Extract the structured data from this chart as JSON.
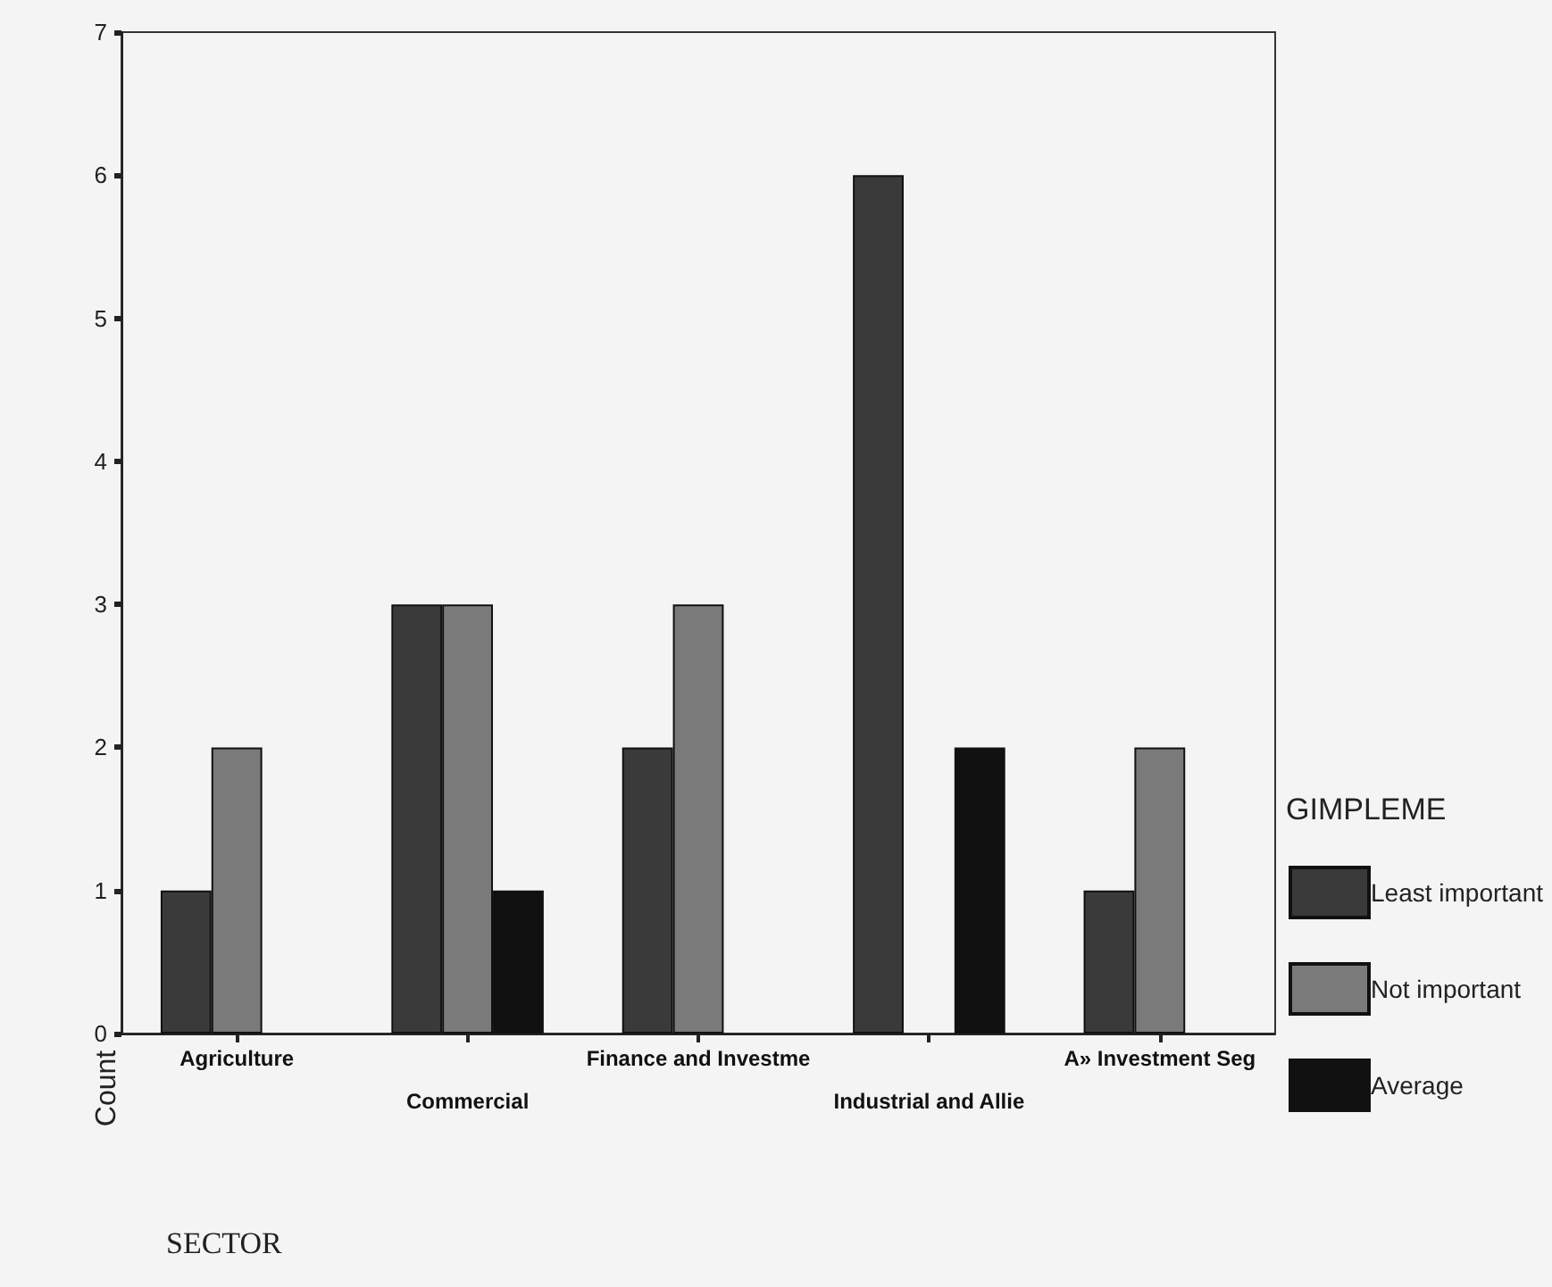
{
  "chart_data": {
    "type": "bar",
    "xlabel": "SECTOR",
    "ylabel": "Count",
    "legend_title": "GIMPLEME",
    "categories": [
      "Agriculture",
      "Commercial",
      "Finance and Investme",
      "Industrial and Allie",
      "A» Investment Seg"
    ],
    "series": [
      {
        "name": "Least important",
        "color": "#3a3a3a",
        "values": [
          1,
          3,
          2,
          6,
          1
        ]
      },
      {
        "name": "Not important",
        "color": "#7a7a7a",
        "values": [
          2,
          3,
          3,
          0,
          2
        ]
      },
      {
        "name": "Average",
        "color": "#111111",
        "values": [
          0,
          1,
          0,
          2,
          0
        ]
      }
    ],
    "ylim": [
      0,
      7
    ],
    "yticks": [
      0,
      1,
      2,
      3,
      4,
      5,
      6,
      7
    ],
    "grid": false,
    "legend": "right"
  }
}
